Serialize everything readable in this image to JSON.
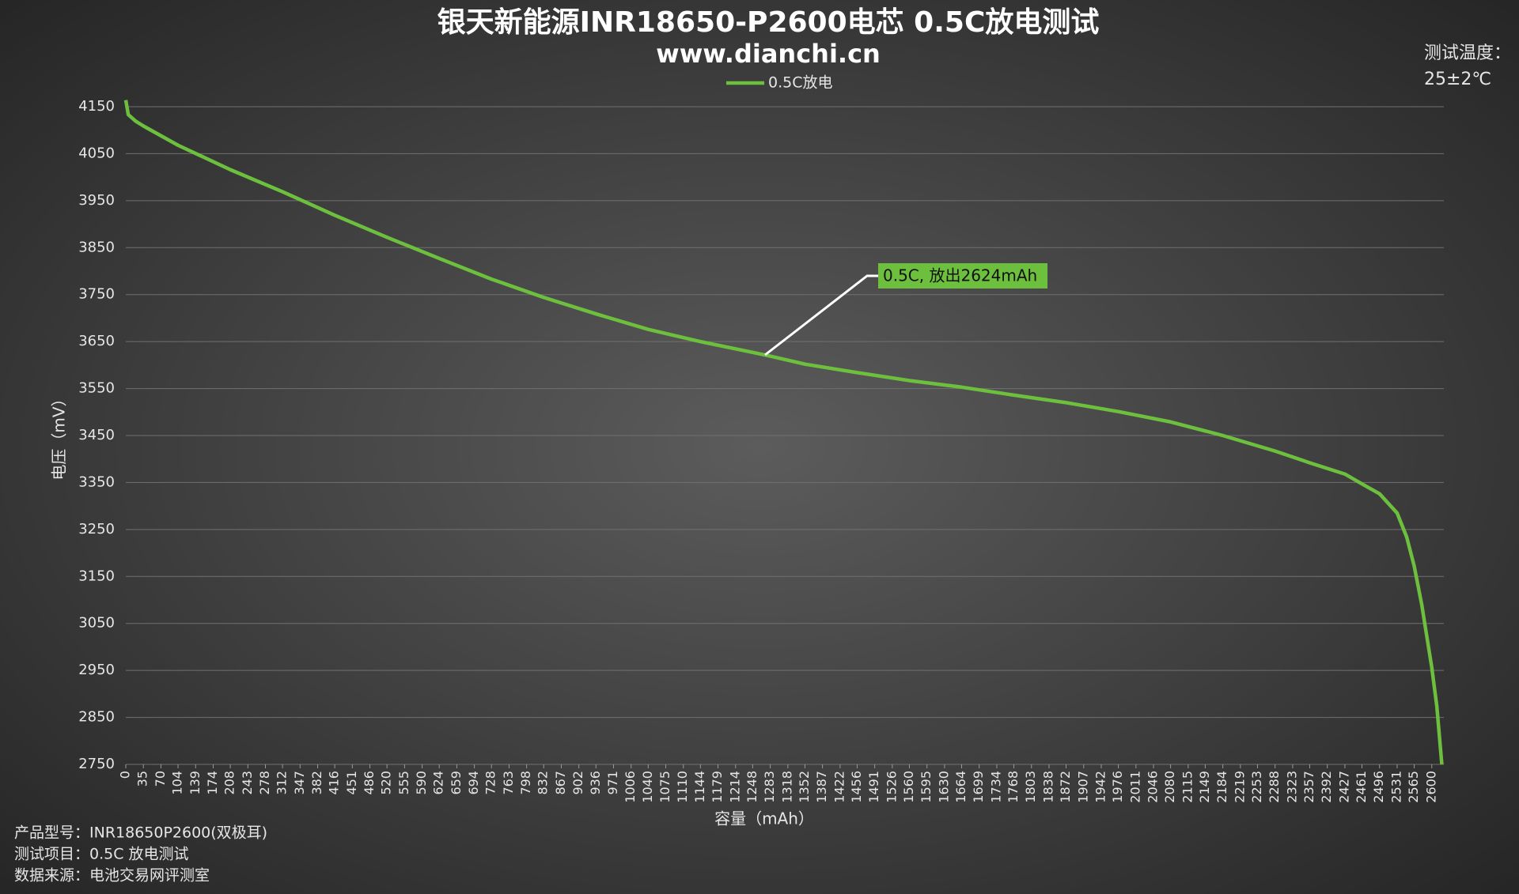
{
  "chart_data": {
    "type": "line",
    "title": "银天新能源INR18650-P2600电芯 0.5C放电测试",
    "subtitle": "www.dianchi.cn",
    "x_label": "容量（mAh）",
    "y_label": "电压（mV）",
    "temperature_label": "测试温度：",
    "temperature_value": "25±2℃",
    "annotation": "0.5C, 放出2624mAh",
    "footer": [
      "产品型号：INR18650P2600(双极耳)",
      "测试项目：0.5C 放电测试",
      "数据来源：电池交易网评测室"
    ],
    "legend": "top",
    "grid": true,
    "x": [
      0,
      5,
      20,
      35,
      104,
      208,
      312,
      416,
      520,
      624,
      728,
      832,
      936,
      1040,
      1144,
      1248,
      1283,
      1352,
      1456,
      1560,
      1664,
      1768,
      1872,
      1976,
      2080,
      2184,
      2288,
      2357,
      2427,
      2461,
      2496,
      2531,
      2550,
      2565,
      2580,
      2600,
      2610,
      2620
    ],
    "series": [
      {
        "name": "0.5C放电",
        "color": "#6dbf3e",
        "values": [
          4164,
          4133,
          4119,
          4109,
          4068,
          4016,
          3969,
          3919,
          3872,
          3827,
          3783,
          3744,
          3709,
          3676,
          3650,
          3627,
          3619,
          3602,
          3584,
          3567,
          3553,
          3536,
          3520,
          3501,
          3479,
          3450,
          3417,
          3392,
          3368,
          3347,
          3326,
          3285,
          3234,
          3172,
          3090,
          2956,
          2874,
          2750
        ]
      }
    ],
    "xlim": [
      0,
      2624
    ],
    "xticks": [
      0,
      35,
      70,
      104,
      139,
      174,
      208,
      243,
      278,
      312,
      347,
      382,
      416,
      451,
      486,
      520,
      555,
      590,
      624,
      659,
      694,
      728,
      763,
      798,
      832,
      867,
      902,
      936,
      971,
      1006,
      1040,
      1075,
      1110,
      1144,
      1179,
      1214,
      1248,
      1283,
      1318,
      1352,
      1387,
      1422,
      1456,
      1491,
      1526,
      1560,
      1595,
      1630,
      1664,
      1699,
      1734,
      1768,
      1803,
      1838,
      1872,
      1907,
      1942,
      1976,
      2011,
      2046,
      2080,
      2115,
      2149,
      2184,
      2219,
      2253,
      2288,
      2323,
      2357,
      2392,
      2427,
      2461,
      2496,
      2531,
      2565,
      2600
    ],
    "ylim": [
      2750,
      4150
    ],
    "yticks": [
      2750,
      2850,
      2950,
      3050,
      3150,
      3250,
      3350,
      3450,
      3550,
      3650,
      3750,
      3850,
      3950,
      4050,
      4150
    ]
  }
}
